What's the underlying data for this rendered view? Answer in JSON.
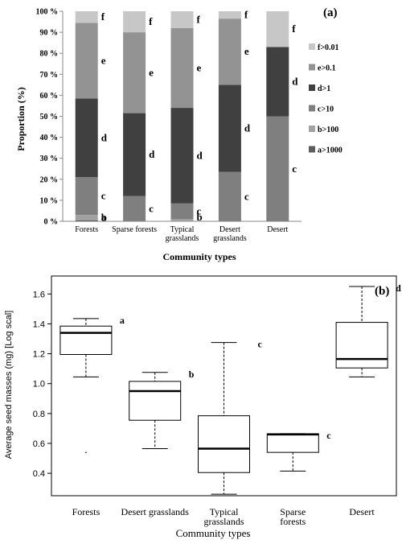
{
  "chart_data": [
    {
      "type": "bar",
      "stacked": true,
      "panel_label": "(a)",
      "xlabel": "Community  types",
      "ylabel": "Proportion (%)",
      "ylim": [
        0,
        100
      ],
      "yticks": [
        "0 %",
        "10 %",
        "20 %",
        "30 %",
        "40 %",
        "50 %",
        "60 %",
        "70 %",
        "80 %",
        "90 %",
        "100 %"
      ],
      "categories": [
        {
          "label": [
            "Forests"
          ]
        },
        {
          "label": [
            "Sparse forests"
          ]
        },
        {
          "label": [
            "Typical",
            "grasslands"
          ]
        },
        {
          "label": [
            "Desert",
            "grasslands"
          ]
        },
        {
          "label": [
            "Desert"
          ]
        }
      ],
      "legend": [
        "f>0.01",
        "e>0.1",
        "d>1",
        "c>10",
        "b>100",
        "a>1000"
      ],
      "colors": {
        "a": "#5d5d5d",
        "b": "#a2a2a2",
        "c": "#7f7f7f",
        "d": "#404040",
        "e": "#939393",
        "f": "#c7c7c7"
      },
      "series": [
        {
          "key": "a",
          "values": [
            0.5,
            0,
            0,
            0,
            0
          ],
          "letters": [
            "a",
            "",
            "",
            "",
            ""
          ]
        },
        {
          "key": "b",
          "values": [
            2.5,
            0,
            1,
            0,
            0
          ],
          "letters": [
            "b",
            "",
            "b",
            "",
            ""
          ]
        },
        {
          "key": "c",
          "values": [
            18,
            12,
            7.5,
            23.5,
            50
          ],
          "letters": [
            "c",
            "c",
            "c",
            "c",
            "c"
          ]
        },
        {
          "key": "d",
          "values": [
            37.5,
            39.5,
            45.5,
            41.5,
            33
          ],
          "letters": [
            "d",
            "d",
            "d",
            "d",
            "d"
          ]
        },
        {
          "key": "e",
          "values": [
            36,
            38.5,
            38,
            31.5,
            0
          ],
          "letters": [
            "e",
            "e",
            "e",
            "e",
            ""
          ]
        },
        {
          "key": "f",
          "values": [
            5.5,
            10,
            8,
            3.5,
            17
          ],
          "letters": [
            "f",
            "f",
            "f",
            "f",
            "f"
          ]
        }
      ]
    },
    {
      "type": "box",
      "panel_label": "(b)",
      "xlabel": "Community types",
      "ylabel": "Average seed masses (mg) [Log scal]",
      "ylim": [
        0.25,
        1.72
      ],
      "yticks": [
        "0.4",
        "0.6",
        "0.8",
        "1.0",
        "1.2",
        "1.4",
        "1.6"
      ],
      "categories": [
        {
          "label": [
            "Forests"
          ],
          "min": 1.045,
          "q1": 1.195,
          "median": 1.34,
          "q3": 1.385,
          "max": 1.435,
          "outliers": [
            0.54
          ],
          "letter": "a"
        },
        {
          "label": [
            "Desert grasslands"
          ],
          "min": 0.565,
          "q1": 0.755,
          "median": 0.95,
          "q3": 1.015,
          "max": 1.075,
          "outliers": [],
          "letter": "b"
        },
        {
          "label": [
            "Typical",
            "grasslands"
          ],
          "min": 0.26,
          "q1": 0.405,
          "median": 0.565,
          "q3": 0.785,
          "max": 1.275,
          "outliers": [],
          "letter": "c"
        },
        {
          "label": [
            "Sparse",
            "forests"
          ],
          "min": 0.415,
          "q1": 0.54,
          "median": 0.66,
          "q3": 0.665,
          "max": 0.665,
          "outliers": [],
          "letter": "c"
        },
        {
          "label": [
            "Desert"
          ],
          "min": 1.045,
          "q1": 1.105,
          "median": 1.165,
          "q3": 1.41,
          "max": 1.65,
          "outliers": [],
          "letter": "d"
        }
      ]
    }
  ]
}
